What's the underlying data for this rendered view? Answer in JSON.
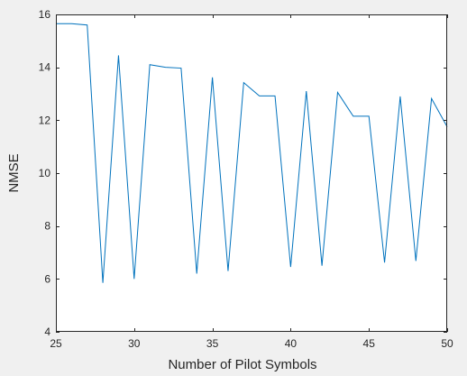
{
  "chart_data": {
    "type": "line",
    "title": "",
    "xlabel": "Number of Pilot Symbols",
    "ylabel": "NMSE",
    "xlim": [
      25,
      50
    ],
    "ylim": [
      4,
      16
    ],
    "x_ticks": [
      25,
      30,
      35,
      40,
      45,
      50
    ],
    "y_ticks": [
      4,
      6,
      8,
      10,
      12,
      14,
      16
    ],
    "grid": false,
    "legend": "none",
    "colors": {
      "line": "#0072bd",
      "axes": "#262626",
      "plot_bg": "#ffffff",
      "figure_bg": "#f0f0f0"
    },
    "series": [
      {
        "x": [
          25,
          26,
          27,
          28,
          29,
          30,
          31,
          32,
          33,
          34,
          35,
          36,
          37,
          38,
          39,
          40,
          41,
          42,
          43,
          44,
          45,
          46,
          47,
          48,
          49,
          50
        ],
        "values": [
          15.65,
          15.65,
          15.6,
          5.85,
          14.45,
          6.0,
          14.1,
          14.0,
          13.97,
          6.2,
          13.62,
          6.3,
          13.42,
          12.92,
          12.92,
          6.45,
          13.1,
          6.5,
          13.05,
          12.15,
          12.15,
          6.62,
          12.9,
          6.68,
          12.82,
          11.75
        ]
      }
    ]
  }
}
